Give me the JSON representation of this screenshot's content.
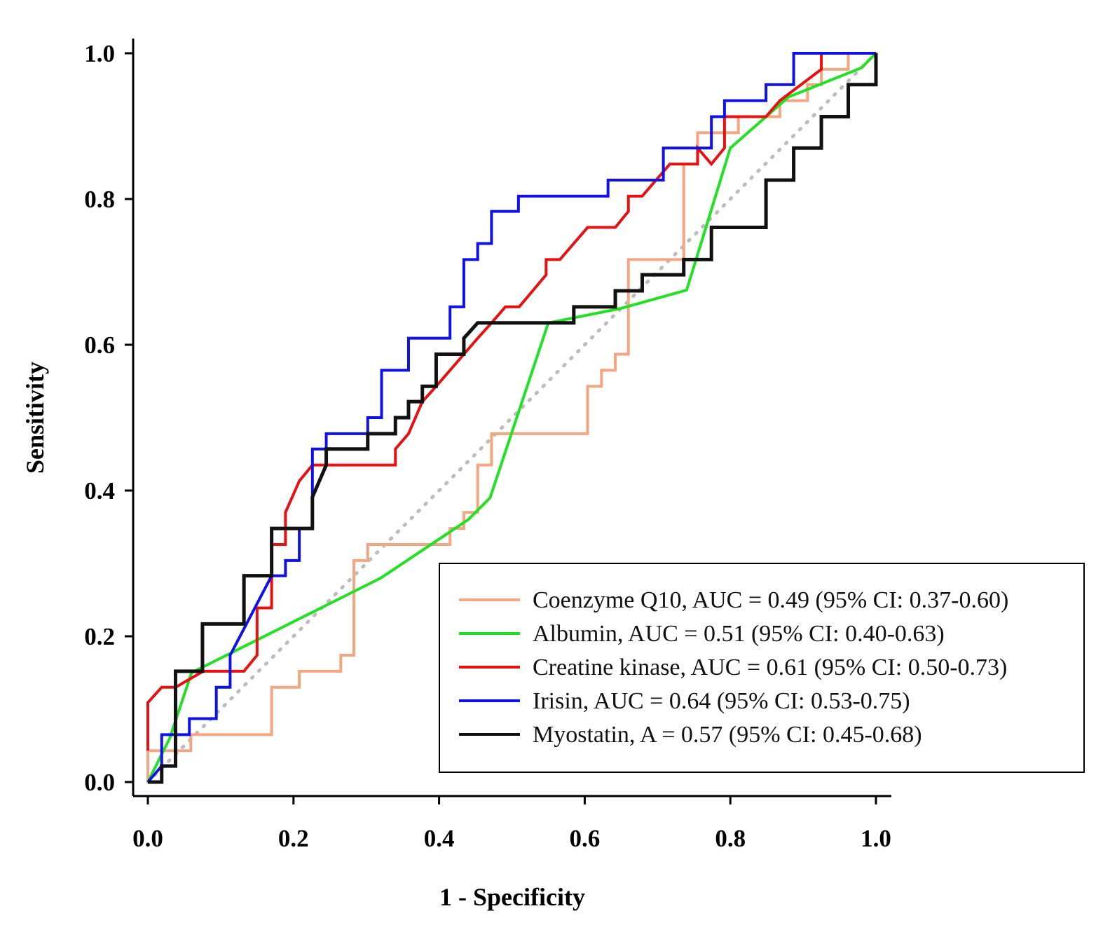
{
  "chart_data": {
    "type": "line",
    "title": "",
    "xlabel": "1 - Specificity",
    "ylabel": "Sensitivity",
    "xlim": [
      0,
      1
    ],
    "ylim": [
      0,
      1
    ],
    "xticks": [
      "0.0",
      "0.2",
      "0.4",
      "0.6",
      "0.8",
      "1.0"
    ],
    "yticks": [
      "0.0",
      "0.2",
      "0.4",
      "0.6",
      "0.8",
      "1.0"
    ],
    "grid": false,
    "legend_position": "bottom-right",
    "reference_line": {
      "name": "chance",
      "color": "#bdbdbd",
      "points": [
        [
          0,
          0
        ],
        [
          1,
          1
        ]
      ]
    },
    "series": [
      {
        "name": "Coenzyme Q10",
        "label": "Coenzyme Q10, AUC = 0.49 (95% CI: 0.37-0.60)",
        "color": "#f4a582",
        "points": [
          [
            0,
            0
          ],
          [
            0,
            0.043
          ],
          [
            0.059,
            0.043
          ],
          [
            0.059,
            0.065
          ],
          [
            0.17,
            0.065
          ],
          [
            0.17,
            0.13
          ],
          [
            0.208,
            0.13
          ],
          [
            0.208,
            0.152
          ],
          [
            0.265,
            0.152
          ],
          [
            0.265,
            0.174
          ],
          [
            0.283,
            0.174
          ],
          [
            0.283,
            0.304
          ],
          [
            0.302,
            0.304
          ],
          [
            0.302,
            0.326
          ],
          [
            0.415,
            0.326
          ],
          [
            0.415,
            0.348
          ],
          [
            0.434,
            0.348
          ],
          [
            0.434,
            0.37
          ],
          [
            0.453,
            0.37
          ],
          [
            0.453,
            0.435
          ],
          [
            0.472,
            0.435
          ],
          [
            0.472,
            0.478
          ],
          [
            0.604,
            0.478
          ],
          [
            0.604,
            0.543
          ],
          [
            0.623,
            0.543
          ],
          [
            0.623,
            0.565
          ],
          [
            0.642,
            0.565
          ],
          [
            0.642,
            0.587
          ],
          [
            0.66,
            0.587
          ],
          [
            0.66,
            0.717
          ],
          [
            0.736,
            0.717
          ],
          [
            0.736,
            0.848
          ],
          [
            0.755,
            0.848
          ],
          [
            0.755,
            0.891
          ],
          [
            0.811,
            0.891
          ],
          [
            0.811,
            0.913
          ],
          [
            0.868,
            0.913
          ],
          [
            0.868,
            0.935
          ],
          [
            0.906,
            0.935
          ],
          [
            0.906,
            0.957
          ],
          [
            0.925,
            0.957
          ],
          [
            0.925,
            0.978
          ],
          [
            0.962,
            0.978
          ],
          [
            0.962,
            1
          ],
          [
            1,
            1
          ]
        ]
      },
      {
        "name": "Albumin",
        "label": "Albumin, AUC = 0.51 (95% CI: 0.40-0.63)",
        "color": "#22e022",
        "points": [
          [
            0,
            0
          ],
          [
            0.03,
            0.06
          ],
          [
            0.06,
            0.15
          ],
          [
            0.12,
            0.18
          ],
          [
            0.2,
            0.22
          ],
          [
            0.32,
            0.28
          ],
          [
            0.44,
            0.36
          ],
          [
            0.47,
            0.39
          ],
          [
            0.52,
            0.54
          ],
          [
            0.55,
            0.63
          ],
          [
            0.65,
            0.65
          ],
          [
            0.74,
            0.675
          ],
          [
            0.8,
            0.87
          ],
          [
            0.88,
            0.94
          ],
          [
            0.98,
            0.98
          ],
          [
            1,
            1
          ]
        ]
      },
      {
        "name": "Creatine kinase",
        "label": "Creatine kinase, AUC = 0.61 (95% CI: 0.50-0.73)",
        "color": "#e81111",
        "points": [
          [
            0,
            0.043
          ],
          [
            0,
            0.109
          ],
          [
            0.019,
            0.13
          ],
          [
            0.038,
            0.13
          ],
          [
            0.076,
            0.152
          ],
          [
            0.132,
            0.152
          ],
          [
            0.15,
            0.174
          ],
          [
            0.15,
            0.239
          ],
          [
            0.17,
            0.239
          ],
          [
            0.17,
            0.326
          ],
          [
            0.189,
            0.326
          ],
          [
            0.189,
            0.37
          ],
          [
            0.208,
            0.413
          ],
          [
            0.226,
            0.435
          ],
          [
            0.34,
            0.435
          ],
          [
            0.34,
            0.457
          ],
          [
            0.358,
            0.478
          ],
          [
            0.377,
            0.522
          ],
          [
            0.396,
            0.543
          ],
          [
            0.415,
            0.565
          ],
          [
            0.434,
            0.587
          ],
          [
            0.453,
            0.609
          ],
          [
            0.472,
            0.63
          ],
          [
            0.491,
            0.652
          ],
          [
            0.51,
            0.652
          ],
          [
            0.547,
            0.696
          ],
          [
            0.547,
            0.717
          ],
          [
            0.566,
            0.717
          ],
          [
            0.585,
            0.739
          ],
          [
            0.604,
            0.761
          ],
          [
            0.642,
            0.761
          ],
          [
            0.66,
            0.783
          ],
          [
            0.66,
            0.804
          ],
          [
            0.679,
            0.804
          ],
          [
            0.698,
            0.826
          ],
          [
            0.717,
            0.848
          ],
          [
            0.755,
            0.848
          ],
          [
            0.755,
            0.87
          ],
          [
            0.774,
            0.848
          ],
          [
            0.792,
            0.87
          ],
          [
            0.792,
            0.913
          ],
          [
            0.849,
            0.913
          ],
          [
            0.868,
            0.935
          ],
          [
            0.925,
            0.978
          ],
          [
            0.925,
            1
          ],
          [
            1,
            1
          ]
        ]
      },
      {
        "name": "Irisin",
        "label": "Irisin, AUC = 0.64 (95% CI: 0.53-0.75)",
        "color": "#1010e8",
        "points": [
          [
            0,
            0
          ],
          [
            0.019,
            0.022
          ],
          [
            0.019,
            0.065
          ],
          [
            0.057,
            0.065
          ],
          [
            0.057,
            0.087
          ],
          [
            0.094,
            0.087
          ],
          [
            0.094,
            0.13
          ],
          [
            0.113,
            0.13
          ],
          [
            0.113,
            0.174
          ],
          [
            0.17,
            0.283
          ],
          [
            0.189,
            0.283
          ],
          [
            0.189,
            0.304
          ],
          [
            0.208,
            0.304
          ],
          [
            0.208,
            0.348
          ],
          [
            0.226,
            0.348
          ],
          [
            0.226,
            0.457
          ],
          [
            0.245,
            0.457
          ],
          [
            0.245,
            0.478
          ],
          [
            0.302,
            0.478
          ],
          [
            0.302,
            0.5
          ],
          [
            0.321,
            0.5
          ],
          [
            0.321,
            0.565
          ],
          [
            0.358,
            0.565
          ],
          [
            0.358,
            0.609
          ],
          [
            0.415,
            0.609
          ],
          [
            0.415,
            0.652
          ],
          [
            0.434,
            0.652
          ],
          [
            0.434,
            0.717
          ],
          [
            0.453,
            0.717
          ],
          [
            0.453,
            0.739
          ],
          [
            0.472,
            0.739
          ],
          [
            0.472,
            0.783
          ],
          [
            0.509,
            0.783
          ],
          [
            0.509,
            0.804
          ],
          [
            0.632,
            0.804
          ],
          [
            0.632,
            0.826
          ],
          [
            0.708,
            0.826
          ],
          [
            0.708,
            0.87
          ],
          [
            0.774,
            0.87
          ],
          [
            0.774,
            0.913
          ],
          [
            0.792,
            0.913
          ],
          [
            0.792,
            0.935
          ],
          [
            0.849,
            0.935
          ],
          [
            0.849,
            0.957
          ],
          [
            0.887,
            0.957
          ],
          [
            0.887,
            1
          ],
          [
            1,
            1
          ]
        ]
      },
      {
        "name": "Myostatin",
        "label": "Myostatin, A = 0.57 (95% CI: 0.45-0.68)",
        "color": "#111111",
        "points": [
          [
            0,
            0
          ],
          [
            0.019,
            0
          ],
          [
            0.019,
            0.022
          ],
          [
            0.038,
            0.022
          ],
          [
            0.038,
            0.152
          ],
          [
            0.075,
            0.152
          ],
          [
            0.075,
            0.217
          ],
          [
            0.132,
            0.217
          ],
          [
            0.132,
            0.283
          ],
          [
            0.17,
            0.283
          ],
          [
            0.17,
            0.348
          ],
          [
            0.226,
            0.348
          ],
          [
            0.226,
            0.391
          ],
          [
            0.245,
            0.435
          ],
          [
            0.245,
            0.457
          ],
          [
            0.302,
            0.457
          ],
          [
            0.302,
            0.478
          ],
          [
            0.34,
            0.478
          ],
          [
            0.34,
            0.5
          ],
          [
            0.358,
            0.5
          ],
          [
            0.358,
            0.522
          ],
          [
            0.377,
            0.522
          ],
          [
            0.377,
            0.543
          ],
          [
            0.396,
            0.543
          ],
          [
            0.396,
            0.587
          ],
          [
            0.434,
            0.587
          ],
          [
            0.434,
            0.609
          ],
          [
            0.453,
            0.63
          ],
          [
            0.585,
            0.63
          ],
          [
            0.585,
            0.652
          ],
          [
            0.642,
            0.652
          ],
          [
            0.642,
            0.674
          ],
          [
            0.679,
            0.674
          ],
          [
            0.679,
            0.696
          ],
          [
            0.736,
            0.696
          ],
          [
            0.736,
            0.717
          ],
          [
            0.774,
            0.717
          ],
          [
            0.774,
            0.761
          ],
          [
            0.849,
            0.761
          ],
          [
            0.849,
            0.826
          ],
          [
            0.887,
            0.826
          ],
          [
            0.887,
            0.87
          ],
          [
            0.925,
            0.87
          ],
          [
            0.925,
            0.913
          ],
          [
            0.962,
            0.913
          ],
          [
            0.962,
            0.957
          ],
          [
            1,
            0.957
          ],
          [
            1,
            1
          ]
        ]
      }
    ]
  }
}
